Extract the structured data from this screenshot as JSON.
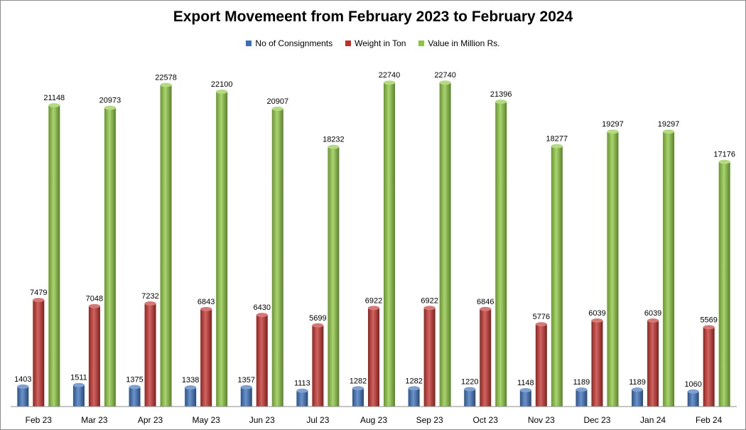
{
  "chart_data": {
    "type": "bar",
    "title": "Export Movemeent from February 2023 to February 2024",
    "xlabel": "",
    "ylabel": "",
    "ylim": [
      0,
      23000
    ],
    "grid": false,
    "legend_position": "top-center",
    "categories": [
      "Feb 23",
      "Mar 23",
      "Apr 23",
      "May 23",
      "Jun 23",
      "Jul 23",
      "Aug 23",
      "Sep 23",
      "Oct 23",
      "Nov 23",
      "Dec 23",
      "Jan 24",
      "Feb 24"
    ],
    "series": [
      {
        "name": "No of Consignments",
        "color": "#3a6fb8",
        "values": [
          1403,
          1511,
          1375,
          1338,
          1357,
          1113,
          1282,
          1282,
          1220,
          1148,
          1189,
          1189,
          1060
        ]
      },
      {
        "name": "Weight in Ton",
        "color": "#c0302b",
        "values": [
          7479,
          7048,
          7232,
          6843,
          6430,
          5699,
          6922,
          6922,
          6846,
          5776,
          6039,
          6039,
          5569
        ]
      },
      {
        "name": "Value in Million Rs.",
        "color": "#8cc63f",
        "values": [
          21148,
          20973,
          22578,
          22100,
          20907,
          18232,
          22740,
          22740,
          21396,
          18277,
          19297,
          19297,
          17176
        ]
      }
    ]
  }
}
